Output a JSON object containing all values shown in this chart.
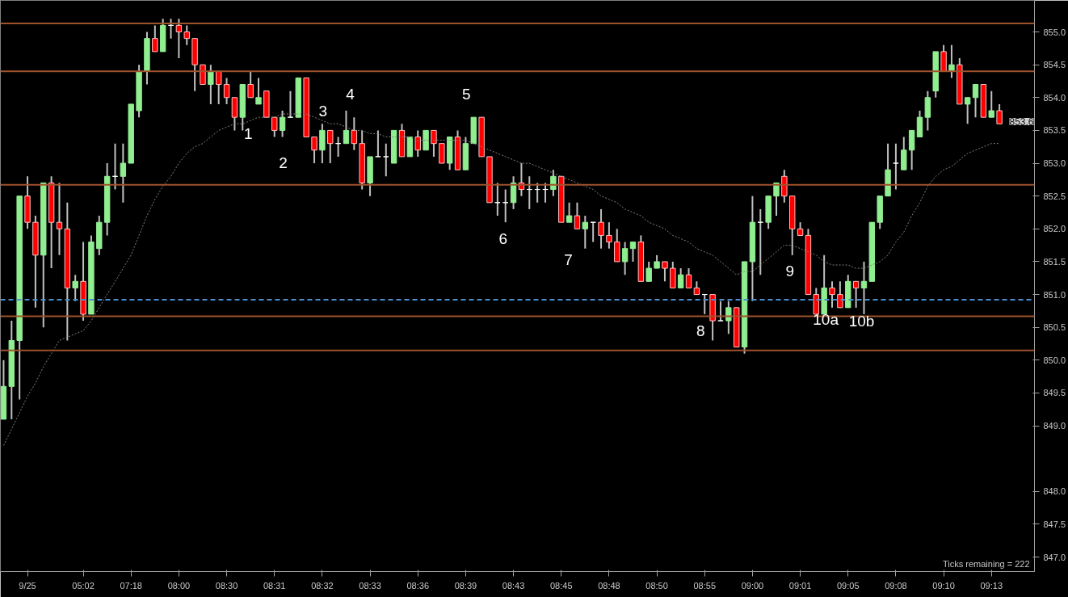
{
  "chart_data": {
    "type": "candlestick",
    "grid": false,
    "ylim": [
      846.78,
      855.48
    ],
    "yticks": [
      {
        "value": 847,
        "label": "847.0"
      },
      {
        "value": 847.5,
        "label": "847.5"
      },
      {
        "value": 848,
        "label": "848.0"
      },
      {
        "value": 849,
        "label": "849.0"
      },
      {
        "value": 849.5,
        "label": "849.5"
      },
      {
        "value": 850,
        "label": "850.0"
      },
      {
        "value": 850.5,
        "label": "850.5"
      },
      {
        "value": 851,
        "label": "851.0"
      },
      {
        "value": 851.5,
        "label": "851.5"
      },
      {
        "value": 852,
        "label": "852.0"
      },
      {
        "value": 852.5,
        "label": "852.5"
      },
      {
        "value": 853,
        "label": "853.0"
      },
      {
        "value": 853.5,
        "label": "853.5"
      },
      {
        "value": 854,
        "label": "854.0"
      },
      {
        "value": 854.5,
        "label": "854.5"
      },
      {
        "value": 855,
        "label": "855.0"
      }
    ],
    "categories": [
      null,
      null,
      null,
      "9/25",
      null,
      null,
      null,
      null,
      null,
      null,
      "05:02",
      null,
      null,
      null,
      null,
      null,
      "07:18",
      null,
      null,
      null,
      null,
      null,
      "08:00",
      null,
      null,
      null,
      null,
      null,
      "08:30",
      null,
      null,
      null,
      null,
      null,
      "08:31",
      null,
      null,
      null,
      null,
      null,
      "08:32",
      null,
      null,
      null,
      null,
      null,
      "08:33",
      null,
      null,
      null,
      null,
      null,
      "08:36",
      null,
      null,
      null,
      null,
      null,
      "08:39",
      null,
      null,
      null,
      null,
      null,
      "08:43",
      null,
      null,
      null,
      null,
      null,
      "08:45",
      null,
      null,
      null,
      null,
      null,
      "08:48",
      null,
      null,
      null,
      null,
      null,
      "08:50",
      null,
      null,
      null,
      null,
      null,
      "08:55",
      null,
      null,
      null,
      null,
      null,
      "09:00",
      null,
      null,
      null,
      null,
      null,
      "09:01",
      null,
      null,
      null,
      null,
      null,
      "09:05",
      null,
      null,
      null,
      null,
      null,
      "09:08",
      null,
      null,
      null,
      null,
      null,
      "09:10",
      null,
      null,
      null,
      null,
      null,
      "09:13",
      null
    ],
    "series": [
      {
        "ohlc": [
          [
            849.1,
            850.0,
            849.1,
            849.6
          ],
          [
            849.6,
            850.6,
            849.1,
            850.3
          ],
          [
            850.3,
            852.5,
            849.4,
            852.5
          ],
          [
            852.5,
            852.8,
            852.0,
            852.1
          ],
          [
            852.1,
            852.2,
            850.8,
            851.6
          ],
          [
            851.6,
            852.7,
            850.5,
            852.7
          ],
          [
            852.7,
            852.8,
            851.4,
            852.1
          ],
          [
            852.1,
            852.7,
            851.6,
            852.0
          ],
          [
            852.0,
            852.4,
            850.3,
            851.1
          ],
          [
            851.1,
            851.3,
            850.9,
            851.2
          ],
          [
            851.2,
            851.8,
            850.6,
            850.7
          ],
          [
            850.7,
            851.9,
            850.7,
            851.8
          ],
          [
            851.7,
            852.2,
            851.6,
            852.1
          ],
          [
            852.1,
            853.0,
            851.9,
            852.8
          ],
          [
            852.8,
            853.3,
            852.6,
            852.8
          ],
          [
            852.8,
            853.3,
            852.4,
            853.0
          ],
          [
            853.0,
            853.9,
            853.0,
            853.9
          ],
          [
            853.8,
            854.5,
            853.7,
            854.4
          ],
          [
            854.4,
            855.0,
            854.2,
            854.9
          ],
          [
            854.9,
            855.1,
            854.7,
            854.7
          ],
          [
            854.7,
            855.2,
            854.7,
            855.1
          ],
          [
            855.1,
            855.2,
            854.9,
            855.1
          ],
          [
            855.1,
            855.2,
            854.6,
            855.0
          ],
          [
            855.0,
            855.1,
            854.8,
            854.9
          ],
          [
            854.9,
            854.9,
            854.1,
            854.5
          ],
          [
            854.5,
            854.5,
            854.2,
            854.2
          ],
          [
            854.2,
            854.5,
            853.9,
            854.4
          ],
          [
            854.4,
            854.4,
            853.9,
            854.2
          ],
          [
            854.2,
            854.3,
            853.9,
            854.0
          ],
          [
            854.0,
            854.0,
            853.5,
            853.7
          ],
          [
            853.7,
            854.2,
            853.5,
            854.2
          ],
          [
            854.2,
            854.4,
            854.0,
            854.0
          ],
          [
            853.9,
            854.3,
            853.9,
            854.0
          ],
          [
            854.1,
            854.1,
            853.7,
            853.7
          ],
          [
            853.7,
            853.7,
            853.4,
            853.5
          ],
          [
            853.5,
            853.8,
            853.4,
            853.7
          ],
          [
            853.7,
            854.1,
            853.7,
            853.7
          ],
          [
            853.7,
            854.3,
            853.7,
            854.3
          ],
          [
            854.3,
            854.3,
            853.4,
            853.4
          ],
          [
            853.4,
            853.4,
            853.0,
            853.2
          ],
          [
            853.2,
            853.6,
            853.0,
            853.5
          ],
          [
            853.5,
            853.5,
            853.0,
            853.3
          ],
          [
            853.3,
            853.4,
            853.1,
            853.3
          ],
          [
            853.3,
            853.8,
            853.3,
            853.5
          ],
          [
            853.5,
            853.7,
            853.2,
            853.3
          ],
          [
            853.3,
            853.5,
            852.6,
            852.7
          ],
          [
            852.7,
            853.1,
            852.5,
            853.1
          ],
          [
            853.1,
            853.5,
            853.1,
            853.1
          ],
          [
            853.1,
            853.3,
            852.8,
            853.1
          ],
          [
            853.0,
            853.5,
            853.0,
            853.5
          ],
          [
            853.5,
            853.6,
            853.1,
            853.1
          ],
          [
            853.1,
            853.4,
            853.1,
            853.4
          ],
          [
            853.4,
            853.5,
            853.1,
            853.2
          ],
          [
            853.2,
            853.5,
            853.2,
            853.5
          ],
          [
            853.5,
            853.5,
            853.1,
            853.3
          ],
          [
            853.3,
            853.3,
            853.0,
            853.0
          ],
          [
            853.0,
            853.4,
            852.9,
            853.4
          ],
          [
            853.4,
            853.5,
            852.9,
            852.9
          ],
          [
            852.9,
            853.4,
            852.9,
            853.3
          ],
          [
            853.3,
            853.7,
            853.3,
            853.7
          ],
          [
            853.7,
            853.7,
            853.1,
            853.1
          ],
          [
            853.1,
            853.1,
            852.4,
            852.4
          ],
          [
            852.4,
            852.7,
            852.2,
            852.4
          ],
          [
            852.4,
            852.6,
            852.1,
            852.4
          ],
          [
            852.4,
            852.8,
            852.3,
            852.7
          ],
          [
            852.7,
            853.0,
            852.5,
            852.6
          ],
          [
            852.6,
            852.8,
            852.3,
            852.6
          ],
          [
            852.6,
            852.7,
            852.4,
            852.6
          ],
          [
            852.6,
            852.7,
            852.4,
            852.6
          ],
          [
            852.6,
            852.9,
            852.5,
            852.8
          ],
          [
            852.8,
            852.8,
            852.1,
            852.1
          ],
          [
            852.1,
            852.4,
            852.1,
            852.2
          ],
          [
            852.2,
            852.4,
            852.0,
            852.0
          ],
          [
            852.0,
            852.2,
            851.7,
            852.1
          ],
          [
            852.1,
            852.1,
            851.8,
            852.1
          ],
          [
            852.1,
            852.3,
            851.7,
            851.9
          ],
          [
            851.9,
            852.1,
            851.7,
            851.8
          ],
          [
            851.8,
            852.0,
            851.5,
            851.5
          ],
          [
            851.5,
            851.8,
            851.3,
            851.7
          ],
          [
            851.7,
            851.8,
            851.5,
            851.8
          ],
          [
            851.8,
            851.9,
            851.2,
            851.2
          ],
          [
            851.2,
            851.5,
            851.2,
            851.4
          ],
          [
            851.4,
            851.6,
            851.4,
            851.5
          ],
          [
            851.5,
            851.5,
            851.2,
            851.4
          ],
          [
            851.4,
            851.5,
            851.1,
            851.1
          ],
          [
            851.1,
            851.4,
            851.1,
            851.3
          ],
          [
            851.3,
            851.4,
            851.1,
            851.1
          ],
          [
            851.1,
            851.2,
            851.0,
            851.0
          ],
          [
            851.0,
            851.0,
            850.7,
            851.0
          ],
          [
            851.0,
            851.0,
            850.3,
            850.6
          ],
          [
            850.6,
            850.9,
            850.6,
            850.6
          ],
          [
            850.6,
            850.9,
            850.4,
            850.8
          ],
          [
            850.8,
            850.8,
            850.2,
            850.2
          ],
          [
            850.2,
            851.5,
            850.1,
            851.5
          ],
          [
            851.5,
            852.5,
            850.9,
            852.1
          ],
          [
            852.1,
            852.3,
            851.3,
            852.1
          ],
          [
            852.1,
            852.5,
            852.0,
            852.5
          ],
          [
            852.5,
            852.7,
            852.2,
            852.7
          ],
          [
            852.8,
            852.9,
            852.4,
            852.5
          ],
          [
            852.5,
            852.5,
            851.6,
            852.0
          ],
          [
            852.0,
            852.1,
            851.9,
            851.9
          ],
          [
            851.9,
            852.0,
            851.0,
            851.0
          ],
          [
            851.0,
            851.1,
            850.7,
            850.7
          ],
          [
            850.7,
            851.6,
            850.7,
            851.1
          ],
          [
            851.1,
            851.2,
            850.8,
            851.0
          ],
          [
            851.0,
            851.2,
            850.8,
            850.8
          ],
          [
            850.8,
            851.3,
            850.8,
            851.2
          ],
          [
            851.2,
            851.2,
            850.8,
            851.1
          ],
          [
            851.1,
            851.5,
            850.7,
            851.2
          ],
          [
            851.2,
            852.1,
            851.2,
            852.1
          ],
          [
            852.1,
            852.5,
            852.0,
            852.5
          ],
          [
            852.5,
            853.3,
            852.5,
            852.9
          ],
          [
            853.0,
            853.3,
            852.6,
            853.0
          ],
          [
            852.9,
            853.4,
            852.9,
            853.2
          ],
          [
            853.2,
            853.5,
            852.9,
            853.5
          ],
          [
            853.4,
            853.8,
            853.4,
            853.7
          ],
          [
            853.7,
            854.1,
            853.5,
            854.0
          ],
          [
            854.1,
            854.7,
            854.0,
            854.7
          ],
          [
            854.7,
            854.8,
            854.4,
            854.4
          ],
          [
            854.4,
            854.8,
            854.3,
            854.5
          ],
          [
            854.5,
            854.6,
            853.9,
            853.9
          ],
          [
            853.9,
            854.0,
            853.6,
            854.0
          ],
          [
            854.0,
            854.2,
            853.7,
            854.2
          ],
          [
            854.2,
            854.2,
            853.7,
            853.7
          ],
          [
            853.7,
            854.1,
            853.7,
            853.8
          ],
          [
            853.8,
            853.9,
            853.6,
            853.6
          ]
        ],
        "colors": [
          "#90ee90",
          "#90ee90",
          "#90ee90",
          "#ff0000",
          "#ff0000",
          "#90ee90",
          "#ff0000",
          "#ff0000",
          "#ff0000",
          "#90ee90",
          "#ff0000",
          "#90ee90",
          "#90ee90",
          "#90ee90",
          "#ffffff",
          "#90ee90",
          "#90ee90",
          "#90ee90",
          "#90ee90",
          "#ff0000",
          "#90ee90",
          "#ffffff",
          "#ff0000",
          "#ff0000",
          "#ff0000",
          "#ff0000",
          "#90ee90",
          "#ff0000",
          "#ff0000",
          "#ff0000",
          "#90ee90",
          "#ff0000",
          "#90ee90",
          "#ff0000",
          "#ff0000",
          "#90ee90",
          "#ffffff",
          "#90ee90",
          "#ff0000",
          "#ff0000",
          "#90ee90",
          "#ff0000",
          "#ffffff",
          "#90ee90",
          "#ff0000",
          "#ff0000",
          "#90ee90",
          "#ffffff",
          "#ffffff",
          "#90ee90",
          "#ff0000",
          "#90ee90",
          "#ff0000",
          "#90ee90",
          "#ff0000",
          "#ff0000",
          "#90ee90",
          "#ff0000",
          "#90ee90",
          "#90ee90",
          "#ff0000",
          "#ff0000",
          "#ffffff",
          "#ffffff",
          "#90ee90",
          "#ff0000",
          "#ffffff",
          "#ffffff",
          "#ffffff",
          "#90ee90",
          "#ff0000",
          "#90ee90",
          "#ff0000",
          "#90ee90",
          "#ffffff",
          "#ff0000",
          "#ff0000",
          "#ff0000",
          "#90ee90",
          "#90ee90",
          "#ff0000",
          "#90ee90",
          "#90ee90",
          "#ff0000",
          "#ff0000",
          "#90ee90",
          "#ff0000",
          "#ff0000",
          "#ffffff",
          "#ff0000",
          "#ffffff",
          "#90ee90",
          "#ff0000",
          "#90ee90",
          "#90ee90",
          "#ffffff",
          "#90ee90",
          "#90ee90",
          "#ff0000",
          "#ff0000",
          "#ff0000",
          "#ff0000",
          "#ff0000",
          "#90ee90",
          "#ff0000",
          "#ff0000",
          "#90ee90",
          "#ff0000",
          "#90ee90",
          "#90ee90",
          "#90ee90",
          "#90ee90",
          "#ffffff",
          "#90ee90",
          "#90ee90",
          "#90ee90",
          "#90ee90",
          "#90ee90",
          "#ff0000",
          "#90ee90",
          "#ff0000",
          "#90ee90",
          "#90ee90",
          "#ff0000",
          "#90ee90",
          "#ff0000"
        ]
      },
      {
        "type": "line",
        "color": "#808080",
        "line_style": "dotted",
        "values": [
          848.7,
          848.95,
          849.2,
          849.45,
          849.65,
          849.9,
          850.1,
          850.3,
          850.35,
          850.4,
          850.45,
          850.6,
          850.8,
          851.0,
          851.2,
          851.4,
          851.6,
          851.9,
          852.2,
          852.45,
          852.65,
          852.8,
          853.0,
          853.15,
          853.25,
          853.3,
          853.4,
          853.5,
          853.55,
          853.6,
          853.6,
          853.65,
          853.7,
          853.7,
          853.7,
          853.75,
          853.75,
          853.75,
          853.75,
          853.7,
          853.65,
          853.6,
          853.6,
          853.55,
          853.5,
          853.5,
          853.45,
          853.45,
          853.4,
          853.4,
          853.4,
          853.4,
          853.35,
          853.35,
          853.35,
          853.35,
          853.35,
          853.35,
          853.35,
          853.3,
          853.25,
          853.2,
          853.15,
          853.1,
          853.05,
          853.0,
          853.0,
          852.95,
          852.9,
          852.85,
          852.8,
          852.75,
          852.7,
          852.65,
          852.6,
          852.5,
          852.45,
          852.4,
          852.3,
          852.25,
          852.2,
          852.1,
          852.05,
          852.0,
          851.9,
          851.85,
          851.8,
          851.7,
          851.65,
          851.6,
          851.5,
          851.4,
          851.3,
          851.35,
          851.35,
          851.45,
          851.55,
          851.65,
          851.75,
          851.75,
          851.7,
          851.65,
          851.6,
          851.5,
          851.45,
          851.45,
          851.45,
          851.4,
          851.4,
          851.45,
          851.5,
          851.6,
          851.8,
          851.95,
          852.2,
          852.4,
          852.65,
          852.8,
          852.9,
          852.95,
          853.05,
          853.15,
          853.2,
          853.25,
          853.3,
          853.3
        ]
      }
    ],
    "ref_lines": [
      {
        "axis": "y",
        "value": 855.13,
        "color": "#a0522d"
      },
      {
        "axis": "y",
        "value": 854.4,
        "color": "#a0522d"
      },
      {
        "axis": "y",
        "value": 852.67,
        "color": "#a0522d"
      },
      {
        "axis": "y",
        "value": 850.67,
        "color": "#a0522d"
      },
      {
        "axis": "y",
        "value": 850.15,
        "color": "#a0522d"
      },
      {
        "axis": "y",
        "value": 850.92,
        "color": "#4a8fd0",
        "line_style": "dashed"
      }
    ],
    "annotations": [
      "1",
      "2",
      "3",
      "4",
      "5",
      "6",
      "7",
      "8",
      "9",
      "10a",
      "10b",
      "Ticks remaining = 222",
      "853.6"
    ]
  }
}
